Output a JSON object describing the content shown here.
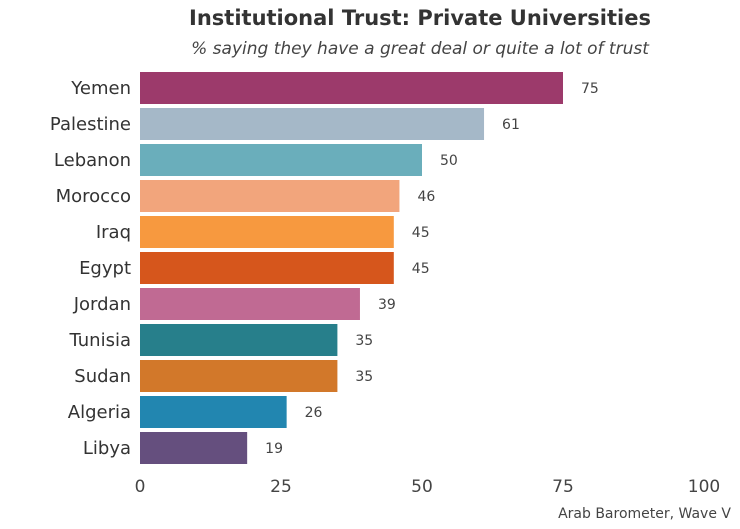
{
  "chart_data": {
    "type": "bar",
    "orientation": "horizontal",
    "title": "Institutional Trust: Private Universities",
    "subtitle": "% saying they have a great deal or quite a lot of trust",
    "caption": "Arab Barometer, Wave V",
    "categories": [
      "Yemen",
      "Palestine",
      "Lebanon",
      "Morocco",
      "Iraq",
      "Egypt",
      "Jordan",
      "Tunisia",
      "Sudan",
      "Algeria",
      "Libya"
    ],
    "values": [
      75,
      61,
      50,
      46,
      45,
      45,
      39,
      35,
      35,
      26,
      19
    ],
    "value_labels": [
      "75",
      "61",
      "50",
      "46",
      "45",
      "45",
      "39",
      "35",
      "35",
      "26",
      "19"
    ],
    "colors": [
      "#9c3a6b",
      "#a5b8c8",
      "#6aaebb",
      "#f2a57c",
      "#f7993f",
      "#d6561c",
      "#c06a93",
      "#277f8b",
      "#d2782a",
      "#2286b0",
      "#654f7e"
    ],
    "xlim": [
      0,
      100
    ],
    "xticks": [
      0,
      25,
      50,
      75,
      100
    ],
    "xtick_labels": [
      "0",
      "25",
      "50",
      "75",
      "100"
    ],
    "grid": false,
    "xlabel": "",
    "ylabel": ""
  }
}
